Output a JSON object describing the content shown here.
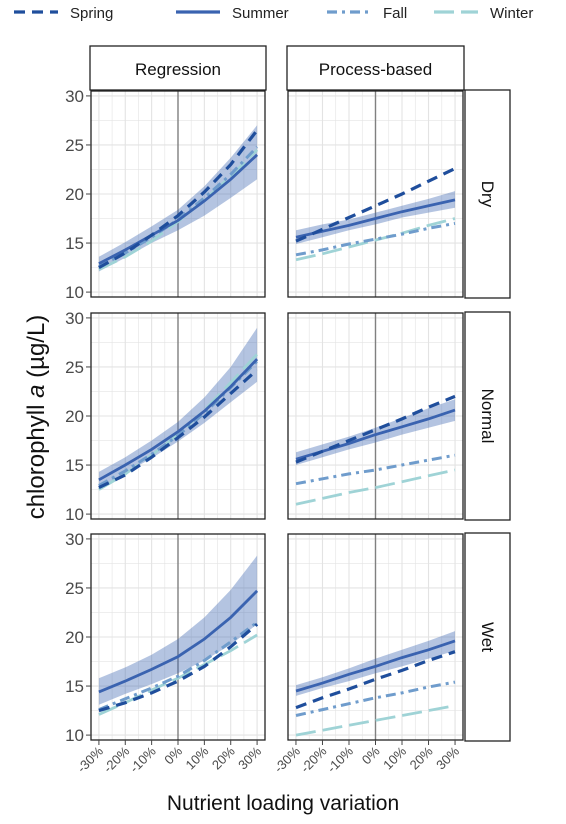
{
  "colors": {
    "Spring": "#1f4e9c",
    "Summer": "#3a63b0",
    "Fall": "#6f9ccc",
    "Winter": "#9fd3d6",
    "band": "#3a63b0",
    "grid": "#e3e3e3",
    "vline": "#808080"
  },
  "chart_data": {
    "type": "line",
    "xlabel": "Nutrient loading variation",
    "ylabel_prefix": "chlorophyll ",
    "ylabel_italic": "a",
    "ylabel_suffix": " (µg/L)",
    "x": [
      -30,
      -20,
      -10,
      0,
      10,
      20,
      30
    ],
    "x_tick_labels": [
      "-30%",
      "-20%",
      "-10%",
      "0%",
      "10%",
      "20%",
      "30%"
    ],
    "xlim": [
      -33,
      33
    ],
    "ylim": [
      9.5,
      30.5
    ],
    "y_ticks": [
      10,
      15,
      20,
      25,
      30
    ],
    "grid": true,
    "legend_position": "top",
    "legend": [
      {
        "name": "Spring",
        "dash": "dashed"
      },
      {
        "name": "Summer",
        "dash": "solid"
      },
      {
        "name": "Fall",
        "dash": "dashdot"
      },
      {
        "name": "Winter",
        "dash": "longdash"
      }
    ],
    "columns": [
      "Regression",
      "Process-based"
    ],
    "rows": [
      "Dry",
      "Normal",
      "Wet"
    ],
    "panels": [
      {
        "row": "Dry",
        "col": "Regression",
        "series": [
          {
            "name": "Spring",
            "values": [
              12.5,
              14.0,
              15.8,
              17.8,
              20.2,
              23.0,
              26.5
            ]
          },
          {
            "name": "Summer",
            "values": [
              12.9,
              14.3,
              15.8,
              17.3,
              19.3,
              21.5,
              24.0
            ],
            "band_low": [
              12.1,
              13.5,
              15.0,
              16.3,
              17.8,
              19.6,
              21.5
            ],
            "band_high": [
              13.6,
              15.1,
              16.7,
              18.4,
              20.8,
              23.7,
              27.0
            ]
          },
          {
            "name": "Fall",
            "values": [
              12.6,
              14.0,
              15.6,
              17.4,
              19.6,
              22.0,
              24.8
            ]
          },
          {
            "name": "Winter",
            "values": [
              12.3,
              13.6,
              15.2,
              17.2,
              19.4,
              21.8,
              24.5
            ]
          }
        ]
      },
      {
        "row": "Dry",
        "col": "Process-based",
        "series": [
          {
            "name": "Spring",
            "values": [
              15.2,
              16.4,
              17.6,
              18.8,
              20.0,
              21.3,
              22.6
            ]
          },
          {
            "name": "Summer",
            "values": [
              15.6,
              16.2,
              16.8,
              17.5,
              18.2,
              18.8,
              19.4
            ],
            "band_low": [
              14.9,
              15.6,
              16.3,
              16.9,
              17.6,
              18.1,
              18.6
            ],
            "band_high": [
              16.3,
              16.9,
              17.4,
              18.1,
              18.8,
              19.5,
              20.3
            ]
          },
          {
            "name": "Fall",
            "values": [
              13.8,
              14.3,
              14.9,
              15.4,
              15.9,
              16.5,
              17.0
            ]
          },
          {
            "name": "Winter",
            "values": [
              13.3,
              13.9,
              14.6,
              15.3,
              16.0,
              16.8,
              17.5
            ]
          }
        ]
      },
      {
        "row": "Normal",
        "col": "Regression",
        "series": [
          {
            "name": "Spring",
            "values": [
              12.7,
              14.0,
              15.8,
              17.8,
              19.9,
              22.3,
              24.7
            ]
          },
          {
            "name": "Summer",
            "values": [
              13.5,
              15.0,
              16.6,
              18.4,
              20.5,
              23.0,
              25.8
            ],
            "band_low": [
              12.7,
              14.2,
              15.7,
              17.4,
              19.3,
              21.4,
              23.5
            ],
            "band_high": [
              14.3,
              15.8,
              17.5,
              19.4,
              21.9,
              25.0,
              29.0
            ]
          },
          {
            "name": "Fall",
            "values": [
              12.9,
              14.4,
              16.1,
              18.0,
              20.3,
              22.9,
              25.6
            ]
          },
          {
            "name": "Winter",
            "values": [
              12.5,
              14.1,
              16.0,
              18.1,
              20.6,
              23.4,
              26.3
            ]
          }
        ]
      },
      {
        "row": "Normal",
        "col": "Process-based",
        "series": [
          {
            "name": "Spring",
            "values": [
              15.3,
              16.4,
              17.5,
              18.6,
              19.7,
              20.9,
              22.0
            ]
          },
          {
            "name": "Summer",
            "values": [
              15.6,
              16.4,
              17.2,
              18.1,
              18.9,
              19.7,
              20.6
            ],
            "band_low": [
              15.0,
              15.8,
              16.6,
              17.3,
              18.1,
              18.8,
              19.5
            ],
            "band_high": [
              16.3,
              17.1,
              17.9,
              18.8,
              19.8,
              20.8,
              21.7
            ]
          },
          {
            "name": "Fall",
            "values": [
              13.1,
              13.6,
              14.1,
              14.5,
              15.0,
              15.5,
              16.0
            ]
          },
          {
            "name": "Winter",
            "values": [
              11.0,
              11.6,
              12.2,
              12.7,
              13.3,
              13.9,
              14.5
            ]
          }
        ]
      },
      {
        "row": "Wet",
        "col": "Regression",
        "series": [
          {
            "name": "Spring",
            "values": [
              12.5,
              13.3,
              14.3,
              15.5,
              17.0,
              19.0,
              21.3
            ]
          },
          {
            "name": "Summer",
            "values": [
              14.4,
              15.5,
              16.7,
              18.0,
              19.8,
              22.0,
              24.7
            ],
            "band_low": [
              13.1,
              14.2,
              15.2,
              16.3,
              17.6,
              19.2,
              21.3
            ],
            "band_high": [
              15.8,
              16.9,
              18.2,
              19.8,
              22.0,
              24.8,
              28.3
            ]
          },
          {
            "name": "Fall",
            "values": [
              12.6,
              13.7,
              14.8,
              16.0,
              17.6,
              19.5,
              21.5
            ]
          },
          {
            "name": "Winter",
            "values": [
              12.1,
              13.3,
              14.6,
              15.8,
              17.2,
              18.6,
              20.2
            ]
          }
        ]
      },
      {
        "row": "Wet",
        "col": "Process-based",
        "series": [
          {
            "name": "Spring",
            "values": [
              12.8,
              13.8,
              14.7,
              15.7,
              16.6,
              17.6,
              18.5
            ]
          },
          {
            "name": "Summer",
            "values": [
              14.5,
              15.3,
              16.2,
              17.0,
              17.9,
              18.7,
              19.6
            ],
            "band_low": [
              14.0,
              14.8,
              15.5,
              16.3,
              17.0,
              17.8,
              18.6
            ],
            "band_high": [
              15.1,
              15.9,
              16.8,
              17.8,
              18.7,
              19.6,
              20.6
            ]
          },
          {
            "name": "Fall",
            "values": [
              12.0,
              12.6,
              13.2,
              13.8,
              14.3,
              14.9,
              15.4
            ]
          },
          {
            "name": "Winter",
            "values": [
              10.0,
              10.5,
              11.0,
              11.5,
              12.0,
              12.5,
              13.0
            ]
          }
        ]
      }
    ]
  }
}
